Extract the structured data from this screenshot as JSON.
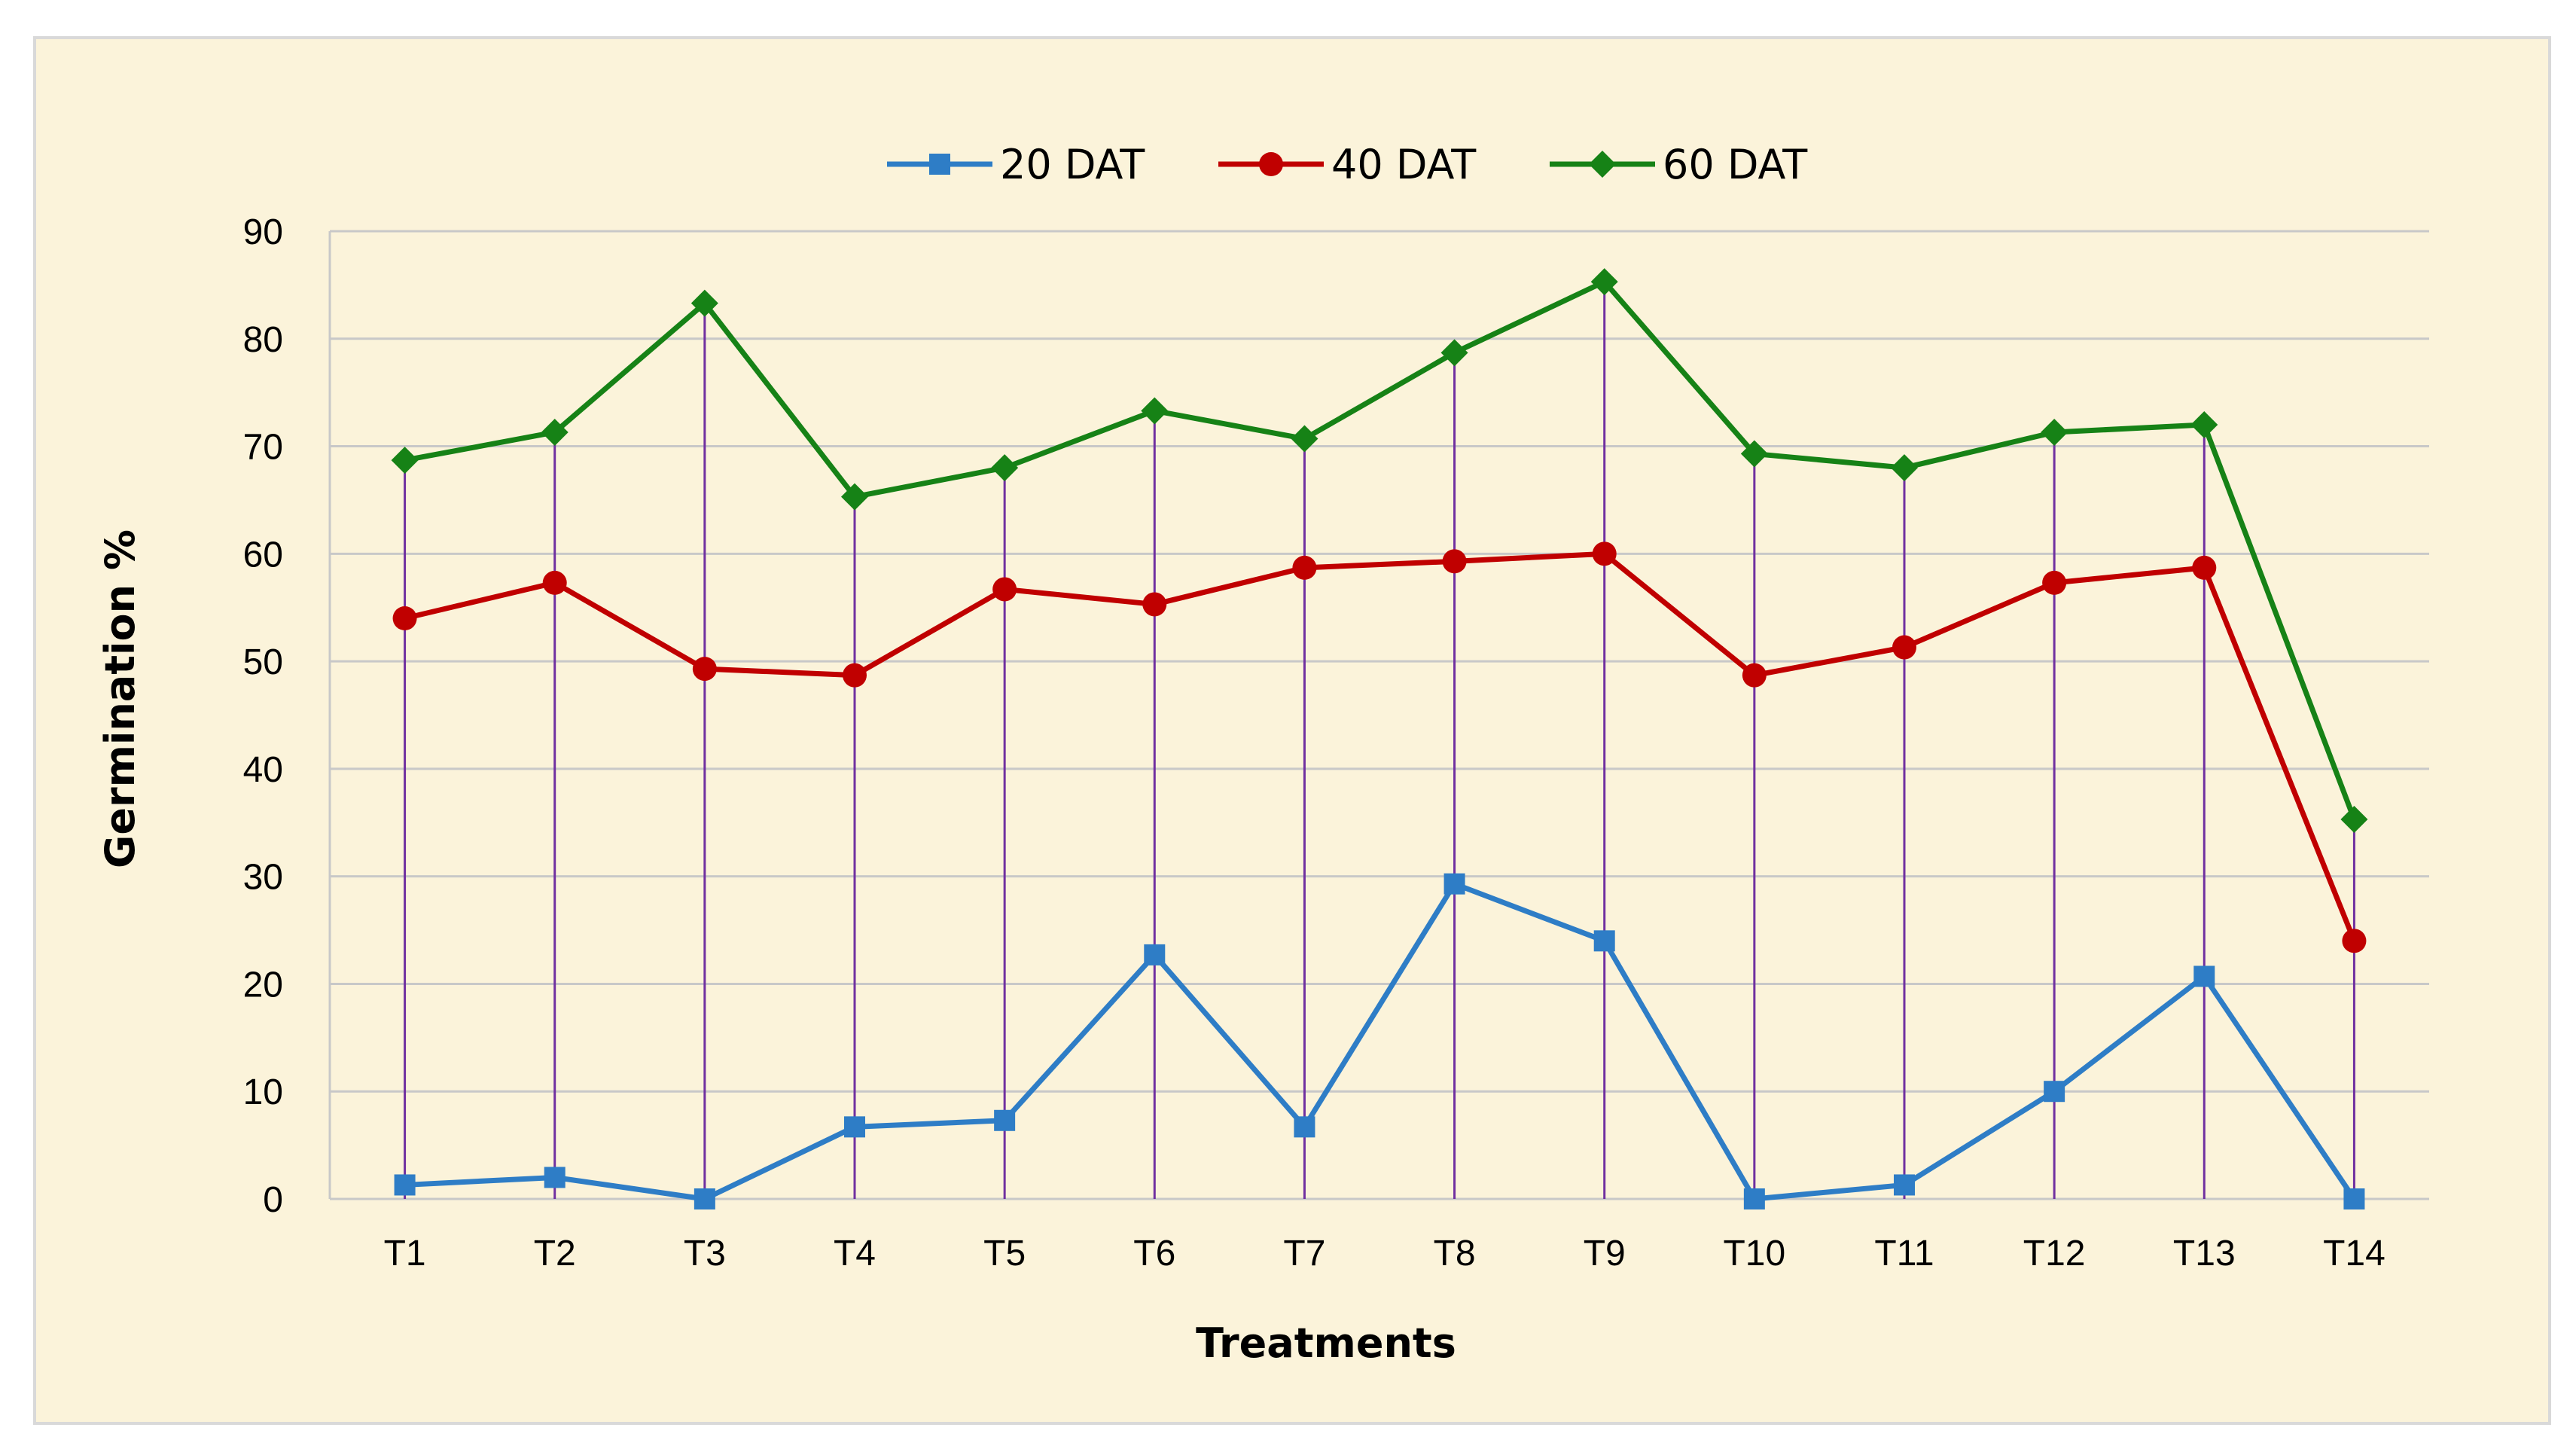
{
  "chart_data": {
    "type": "line",
    "title": "",
    "xlabel": "Treatments",
    "ylabel": "Germination %",
    "ylim": [
      0,
      90
    ],
    "yticks": [
      0,
      10,
      20,
      30,
      40,
      50,
      60,
      70,
      80,
      90
    ],
    "grid": true,
    "legend_position": "top-center",
    "drop_lines": true,
    "categories": [
      "T1",
      "T2",
      "T3",
      "T4",
      "T5",
      "T6",
      "T7",
      "T8",
      "T9",
      "T10",
      "T11",
      "T12",
      "T13",
      "T14"
    ],
    "series": [
      {
        "name": "20 DAT",
        "color": "#2e7dc6",
        "marker": "square",
        "values": [
          1.3,
          2.0,
          0.0,
          6.7,
          7.3,
          22.7,
          6.7,
          29.3,
          24.0,
          0.0,
          1.3,
          10.0,
          20.7,
          0.0
        ]
      },
      {
        "name": "40 DAT",
        "color": "#c00000",
        "marker": "circle",
        "values": [
          54.0,
          57.3,
          49.3,
          48.7,
          56.7,
          55.3,
          58.7,
          59.3,
          60.0,
          48.7,
          51.3,
          57.3,
          58.7,
          24.0
        ]
      },
      {
        "name": "60 DAT",
        "color": "#168216",
        "marker": "diamond",
        "values": [
          68.7,
          71.3,
          83.3,
          65.3,
          68.0,
          73.3,
          70.7,
          78.7,
          85.3,
          69.3,
          68.0,
          71.3,
          72.0,
          35.3
        ]
      }
    ],
    "colors": {
      "background": "#fbf3da",
      "gridline": "#c8c8c8",
      "drop_line": "#7030a0"
    }
  }
}
